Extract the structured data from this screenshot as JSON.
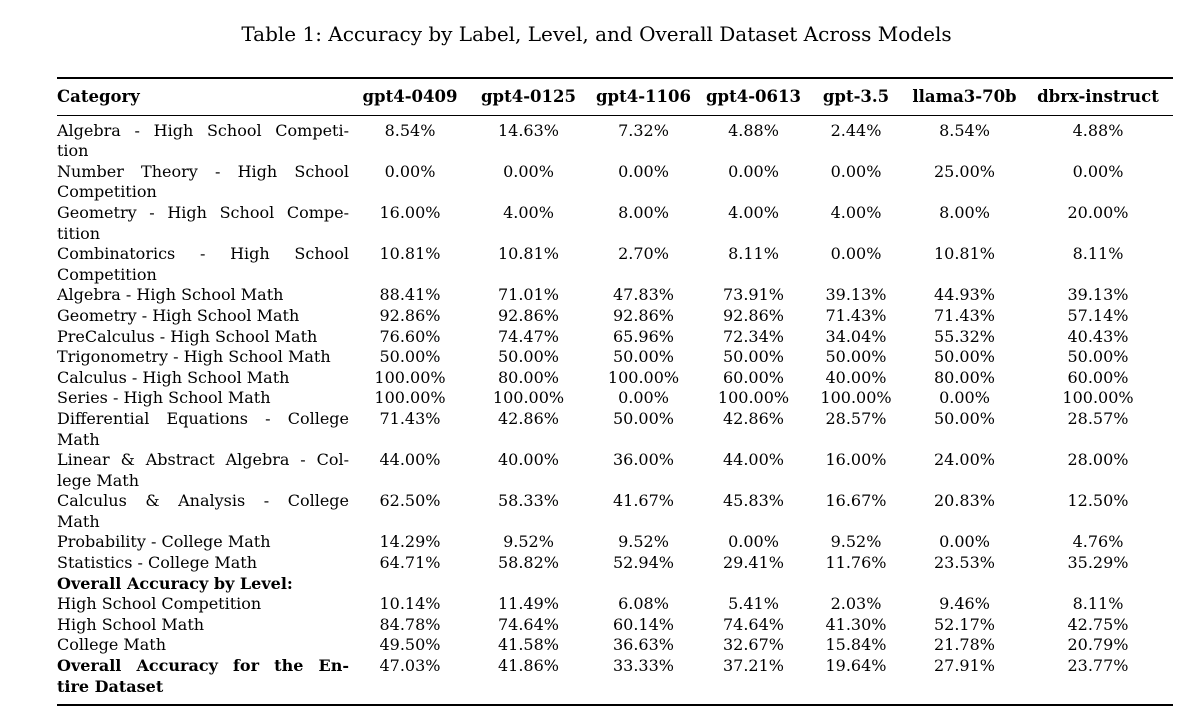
{
  "caption": "Table 1: Accuracy by Label, Level, and Overall Dataset Across Models",
  "colors": {
    "text": "#000000",
    "background": "#ffffff",
    "rule": "#000000"
  },
  "table": {
    "headers": [
      "Category",
      "gpt4-0409",
      "gpt4-0125",
      "gpt4-1106",
      "gpt4-0613",
      "gpt-3.5",
      "llama3-70b",
      "dbrx-instruct"
    ],
    "rows": [
      {
        "category_lines": [
          "Algebra - High School Competi-",
          "tion"
        ],
        "bold": false,
        "values": [
          "8.54%",
          "14.63%",
          "7.32%",
          "4.88%",
          "2.44%",
          "8.54%",
          "4.88%"
        ]
      },
      {
        "category_lines": [
          "Number Theory - High School",
          "Competition"
        ],
        "bold": false,
        "values": [
          "0.00%",
          "0.00%",
          "0.00%",
          "0.00%",
          "0.00%",
          "25.00%",
          "0.00%"
        ]
      },
      {
        "category_lines": [
          "Geometry - High School Compe-",
          "tition"
        ],
        "bold": false,
        "values": [
          "16.00%",
          "4.00%",
          "8.00%",
          "4.00%",
          "4.00%",
          "8.00%",
          "20.00%"
        ]
      },
      {
        "category_lines": [
          "Combinatorics - High School",
          "Competition"
        ],
        "bold": false,
        "values": [
          "10.81%",
          "10.81%",
          "2.70%",
          "8.11%",
          "0.00%",
          "10.81%",
          "8.11%"
        ]
      },
      {
        "category_lines": [
          "Algebra - High School Math"
        ],
        "bold": false,
        "values": [
          "88.41%",
          "71.01%",
          "47.83%",
          "73.91%",
          "39.13%",
          "44.93%",
          "39.13%"
        ]
      },
      {
        "category_lines": [
          "Geometry - High School Math"
        ],
        "bold": false,
        "values": [
          "92.86%",
          "92.86%",
          "92.86%",
          "92.86%",
          "71.43%",
          "71.43%",
          "57.14%"
        ]
      },
      {
        "category_lines": [
          "PreCalculus - High School Math"
        ],
        "bold": false,
        "values": [
          "76.60%",
          "74.47%",
          "65.96%",
          "72.34%",
          "34.04%",
          "55.32%",
          "40.43%"
        ]
      },
      {
        "category_lines": [
          "Trigonometry - High School Math"
        ],
        "bold": false,
        "values": [
          "50.00%",
          "50.00%",
          "50.00%",
          "50.00%",
          "50.00%",
          "50.00%",
          "50.00%"
        ]
      },
      {
        "category_lines": [
          "Calculus - High School Math"
        ],
        "bold": false,
        "values": [
          "100.00%",
          "80.00%",
          "100.00%",
          "60.00%",
          "40.00%",
          "80.00%",
          "60.00%"
        ]
      },
      {
        "category_lines": [
          "Series - High School Math"
        ],
        "bold": false,
        "values": [
          "100.00%",
          "100.00%",
          "0.00%",
          "100.00%",
          "100.00%",
          "0.00%",
          "100.00%"
        ]
      },
      {
        "category_lines": [
          "Differential Equations - College",
          "Math"
        ],
        "bold": false,
        "values": [
          "71.43%",
          "42.86%",
          "50.00%",
          "42.86%",
          "28.57%",
          "50.00%",
          "28.57%"
        ]
      },
      {
        "category_lines": [
          "Linear & Abstract Algebra - Col-",
          "lege Math"
        ],
        "bold": false,
        "values": [
          "44.00%",
          "40.00%",
          "36.00%",
          "44.00%",
          "16.00%",
          "24.00%",
          "28.00%"
        ]
      },
      {
        "category_lines": [
          "Calculus & Analysis - College",
          "Math"
        ],
        "bold": false,
        "values": [
          "62.50%",
          "58.33%",
          "41.67%",
          "45.83%",
          "16.67%",
          "20.83%",
          "12.50%"
        ]
      },
      {
        "category_lines": [
          "Probability - College Math"
        ],
        "bold": false,
        "values": [
          "14.29%",
          "9.52%",
          "9.52%",
          "0.00%",
          "9.52%",
          "0.00%",
          "4.76%"
        ]
      },
      {
        "category_lines": [
          "Statistics - College Math"
        ],
        "bold": false,
        "values": [
          "64.71%",
          "58.82%",
          "52.94%",
          "29.41%",
          "11.76%",
          "23.53%",
          "35.29%"
        ]
      },
      {
        "category_lines": [
          "Overall Accuracy by Level:"
        ],
        "bold": true,
        "values": []
      },
      {
        "category_lines": [
          "High School Competition"
        ],
        "bold": false,
        "values": [
          "10.14%",
          "11.49%",
          "6.08%",
          "5.41%",
          "2.03%",
          "9.46%",
          "8.11%"
        ]
      },
      {
        "category_lines": [
          "High School Math"
        ],
        "bold": false,
        "values": [
          "84.78%",
          "74.64%",
          "60.14%",
          "74.64%",
          "41.30%",
          "52.17%",
          "42.75%"
        ]
      },
      {
        "category_lines": [
          "College Math"
        ],
        "bold": false,
        "values": [
          "49.50%",
          "41.58%",
          "36.63%",
          "32.67%",
          "15.84%",
          "21.78%",
          "20.79%"
        ]
      },
      {
        "category_lines": [
          "Overall Accuracy for the En-",
          "tire Dataset"
        ],
        "bold": true,
        "values": [
          "47.03%",
          "41.86%",
          "33.33%",
          "37.21%",
          "19.64%",
          "27.91%",
          "23.77%"
        ]
      }
    ]
  }
}
